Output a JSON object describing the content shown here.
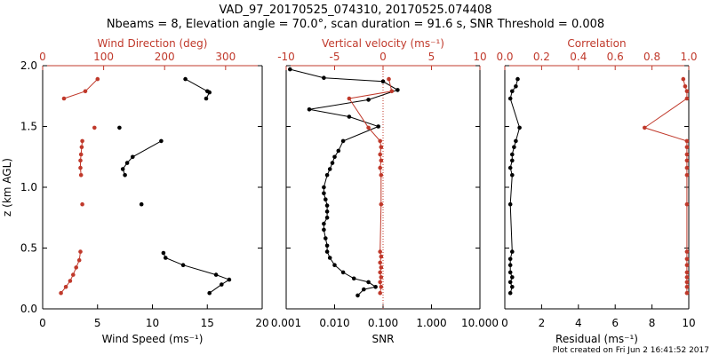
{
  "title_line1": "VAD_97_20170525_074310, 20170525.074408",
  "title_line2": "Nbeams = 8, Elevation angle = 70.0°, scan duration = 91.6 s, SNR Threshold = 0.008",
  "footer": "Plot created on Fri Jun  2 16:41:52 2017",
  "colors": {
    "black": "#000000",
    "red": "#c0392b"
  },
  "chart_data": [
    {
      "type": "scatter",
      "ylabel": "z (km AGL)",
      "ylim": [
        0,
        2.0
      ],
      "y_ticks": [
        "0.0",
        "0.5",
        "1.0",
        "1.5",
        "2.0"
      ],
      "bottom_axis": {
        "label": "Wind Speed (ms⁻¹)",
        "lim": [
          0,
          20
        ],
        "ticks": [
          "0",
          "5",
          "10",
          "15",
          "20"
        ]
      },
      "top_axis": {
        "label": "Wind Direction (deg)",
        "lim": [
          0,
          360
        ],
        "ticks": [
          "0",
          "100",
          "200",
          "300"
        ]
      },
      "series": [
        {
          "axis": "bottom",
          "color": "black",
          "x": [
            13.0,
            15.0,
            15.2,
            14.9,
            null,
            7.0,
            null,
            10.8,
            8.2,
            7.7,
            7.3,
            7.5,
            null,
            9.0,
            null,
            11.0,
            11.2,
            12.8,
            15.8,
            17.0,
            16.3,
            15.2
          ],
          "y": [
            1.89,
            1.79,
            1.78,
            1.73,
            null,
            1.49,
            null,
            1.38,
            1.25,
            1.2,
            1.15,
            1.1,
            null,
            0.86,
            null,
            0.46,
            0.42,
            0.36,
            0.28,
            0.24,
            0.2,
            0.13
          ]
        },
        {
          "axis": "top",
          "color": "red",
          "x": [
            90,
            70,
            35,
            null,
            85,
            null,
            65,
            64,
            63,
            62,
            62,
            63,
            null,
            65,
            null,
            62,
            60,
            55,
            50,
            45,
            38,
            30
          ],
          "y": [
            1.89,
            1.79,
            1.73,
            null,
            1.49,
            null,
            1.38,
            1.33,
            1.27,
            1.22,
            1.16,
            1.1,
            null,
            0.86,
            null,
            0.47,
            0.4,
            0.34,
            0.28,
            0.23,
            0.18,
            0.13
          ]
        }
      ]
    },
    {
      "type": "scatter",
      "bottom_axis": {
        "label": "SNR",
        "lim": [
          0.001,
          10
        ],
        "scale": "log",
        "ticks": [
          "0.001",
          "0.010",
          "0.100",
          "1.000",
          "10.000"
        ]
      },
      "top_axis": {
        "label": "Vertical velocity (ms⁻¹)",
        "lim": [
          -10,
          10
        ],
        "ticks": [
          "-10",
          "-5",
          "0",
          "5",
          "10"
        ]
      },
      "reference_line": {
        "axis": "top",
        "x": 0,
        "style": "dotted"
      },
      "series": [
        {
          "axis": "bottom",
          "color": "black",
          "x": [
            0.0012,
            0.006,
            0.1,
            0.2,
            0.05,
            0.003,
            0.02,
            0.08,
            0.015,
            0.012,
            0.01,
            0.009,
            0.008,
            0.007,
            0.006,
            0.006,
            0.0065,
            0.007,
            0.007,
            0.007,
            0.006,
            0.006,
            0.0065,
            0.007,
            0.007,
            0.008,
            0.01,
            0.015,
            0.025,
            0.05,
            0.07,
            0.04,
            0.03
          ],
          "y": [
            1.97,
            1.9,
            1.87,
            1.8,
            1.72,
            1.64,
            1.58,
            1.5,
            1.38,
            1.3,
            1.25,
            1.2,
            1.15,
            1.1,
            1.0,
            0.95,
            0.9,
            0.85,
            0.8,
            0.75,
            0.7,
            0.65,
            0.58,
            0.52,
            0.47,
            0.42,
            0.36,
            0.3,
            0.25,
            0.22,
            0.18,
            0.16,
            0.11
          ]
        },
        {
          "axis": "top",
          "color": "red",
          "x": [
            0.6,
            0.9,
            -3.5,
            -1.5,
            -0.3,
            -0.2,
            -0.3,
            -0.2,
            -0.3,
            -0.2,
            -0.2,
            -0.3,
            -0.2,
            -0.3,
            -0.2,
            -0.3,
            -0.2,
            -0.3,
            -0.2,
            -0.3
          ],
          "y": [
            1.89,
            1.79,
            1.73,
            1.49,
            1.38,
            1.33,
            1.27,
            1.22,
            1.16,
            1.1,
            0.86,
            0.47,
            0.43,
            0.38,
            0.34,
            0.3,
            0.26,
            0.22,
            0.18,
            0.13
          ]
        }
      ]
    },
    {
      "type": "scatter",
      "bottom_axis": {
        "label": "Residual (ms⁻¹)",
        "lim": [
          0,
          10
        ],
        "ticks": [
          "0",
          "2",
          "4",
          "6",
          "8",
          "10"
        ]
      },
      "top_axis": {
        "label": "Correlation",
        "lim": [
          0,
          1
        ],
        "ticks": [
          "0.0",
          "0.2",
          "0.4",
          "0.6",
          "0.8",
          "1.0"
        ]
      },
      "series": [
        {
          "axis": "bottom",
          "color": "black",
          "x": [
            0.7,
            0.6,
            0.4,
            0.3,
            0.8,
            0.6,
            0.5,
            0.4,
            0.4,
            0.3,
            0.4,
            0.3,
            0.4,
            0.3,
            0.3,
            0.3,
            0.4,
            0.3,
            0.4,
            0.3
          ],
          "y": [
            1.89,
            1.83,
            1.79,
            1.73,
            1.49,
            1.38,
            1.33,
            1.27,
            1.22,
            1.16,
            1.1,
            0.86,
            0.47,
            0.41,
            0.36,
            0.3,
            0.26,
            0.22,
            0.18,
            0.13
          ]
        },
        {
          "axis": "top",
          "color": "red",
          "x": [
            0.97,
            0.98,
            0.99,
            0.99,
            0.76,
            0.99,
            0.99,
            0.99,
            0.99,
            0.99,
            0.99,
            0.99,
            0.99,
            0.99,
            0.99,
            0.99,
            0.99,
            0.99,
            0.99,
            0.99
          ],
          "y": [
            1.89,
            1.83,
            1.79,
            1.73,
            1.49,
            1.38,
            1.33,
            1.27,
            1.22,
            1.16,
            1.1,
            0.86,
            0.47,
            0.41,
            0.36,
            0.3,
            0.26,
            0.22,
            0.18,
            0.13
          ]
        }
      ]
    }
  ]
}
